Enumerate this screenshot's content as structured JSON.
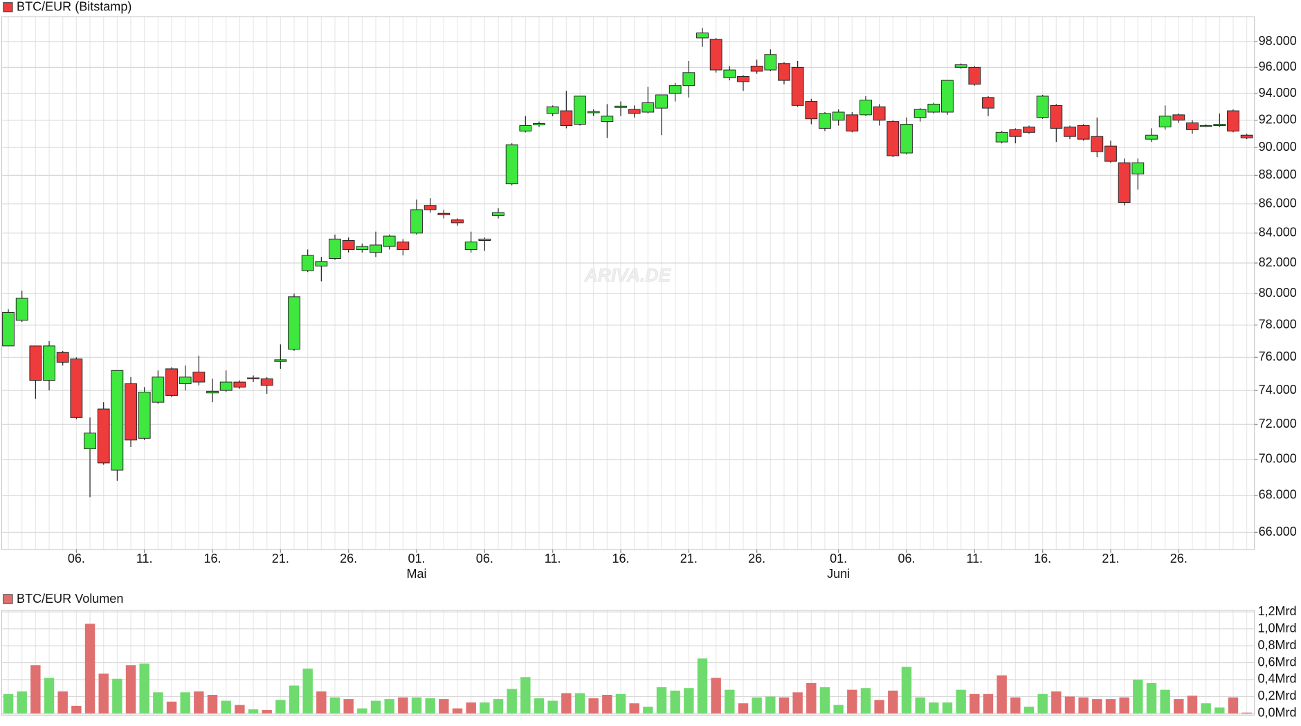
{
  "chart_data": [
    {
      "type": "candlestick",
      "title": "BTC/EUR (Bitstamp)",
      "watermark": "ARIVA.DE",
      "log": true,
      "grid": true,
      "up_color": "#3ee83e",
      "down_color": "#ee3b3b",
      "x": [
        "04-01",
        "04-02",
        "04-03",
        "04-04",
        "04-05",
        "04-06",
        "04-07",
        "04-08",
        "04-09",
        "04-10",
        "04-11",
        "04-12",
        "04-13",
        "04-14",
        "04-15",
        "04-16",
        "04-17",
        "04-18",
        "04-19",
        "04-20",
        "04-21",
        "04-22",
        "04-23",
        "04-24",
        "04-25",
        "04-26",
        "04-27",
        "04-28",
        "04-29",
        "04-30",
        "05-01",
        "05-02",
        "05-03",
        "05-04",
        "05-05",
        "05-06",
        "05-07",
        "05-08",
        "05-09",
        "05-10",
        "05-11",
        "05-12",
        "05-13",
        "05-14",
        "05-15",
        "05-16",
        "05-17",
        "05-18",
        "05-19",
        "05-20",
        "05-21",
        "05-22",
        "05-23",
        "05-24",
        "05-25",
        "05-26",
        "05-27",
        "05-28",
        "05-29",
        "05-30",
        "05-31",
        "06-01",
        "06-02",
        "06-03",
        "06-04",
        "06-05",
        "06-06",
        "06-07",
        "06-08",
        "06-09",
        "06-10",
        "06-11",
        "06-12",
        "06-13",
        "06-14",
        "06-15",
        "06-16",
        "06-17",
        "06-18",
        "06-19",
        "06-20",
        "06-21",
        "06-22",
        "06-23",
        "06-24",
        "06-25",
        "06-26",
        "06-27",
        "06-28",
        "06-29",
        "06-30",
        "07-01"
      ],
      "open": [
        76700,
        78300,
        76700,
        74600,
        76300,
        75900,
        70600,
        72900,
        69400,
        74400,
        71200,
        73300,
        75300,
        74400,
        75100,
        73850,
        74000,
        74500,
        74750,
        74700,
        75750,
        76500,
        81500,
        81800,
        82300,
        83500,
        82900,
        82700,
        83100,
        83400,
        84000,
        85900,
        85350,
        84900,
        82900,
        83500,
        85200,
        87400,
        91200,
        91650,
        92500,
        92700,
        91700,
        92550,
        91900,
        92950,
        92800,
        92600,
        92900,
        94000,
        94600,
        98300,
        98200,
        95200,
        95300,
        96100,
        95800,
        96300,
        96000,
        93400,
        91400,
        92000,
        92400,
        92400,
        93000,
        91900,
        89600,
        92200,
        92600,
        92600,
        96000,
        96000,
        93700,
        90400,
        91300,
        91500,
        92200,
        93100,
        91500,
        91600,
        90800,
        90100,
        88900,
        88100,
        90600,
        91500,
        92400,
        91800,
        91550,
        91600,
        92700,
        90900
      ],
      "high": [
        79000,
        80200,
        76700,
        77000,
        76400,
        76000,
        72400,
        73300,
        75200,
        74800,
        74200,
        75200,
        75400,
        75500,
        76100,
        74700,
        75200,
        74600,
        74900,
        74800,
        76800,
        80000,
        82900,
        82400,
        83900,
        83700,
        83300,
        84100,
        83900,
        83600,
        86300,
        86400,
        85600,
        85000,
        84100,
        83700,
        85700,
        90300,
        92300,
        91900,
        93100,
        94200,
        93800,
        92800,
        93200,
        93400,
        93100,
        94500,
        93900,
        94800,
        96500,
        99100,
        98300,
        96100,
        95400,
        96600,
        97400,
        96400,
        96500,
        93600,
        92600,
        92800,
        92600,
        93800,
        93200,
        92000,
        92200,
        92900,
        93300,
        95000,
        96300,
        96100,
        93800,
        91200,
        91400,
        91600,
        93900,
        93200,
        91600,
        91700,
        92200,
        90500,
        89200,
        89200,
        91400,
        93100,
        92500,
        92000,
        91700,
        92500,
        92800,
        91000
      ],
      "low": [
        76700,
        78200,
        73500,
        74000,
        75500,
        72300,
        67900,
        69700,
        68800,
        70700,
        71100,
        73200,
        73600,
        74000,
        74300,
        73300,
        73900,
        74100,
        74500,
        73800,
        75300,
        76400,
        81400,
        80800,
        82200,
        82700,
        82700,
        82400,
        82900,
        82500,
        83900,
        85400,
        85000,
        84500,
        82700,
        82800,
        85000,
        87300,
        91100,
        91500,
        92300,
        91400,
        91600,
        92300,
        90700,
        92300,
        92200,
        92500,
        90900,
        93400,
        93700,
        97600,
        95600,
        95000,
        94200,
        95500,
        95700,
        94700,
        93000,
        91700,
        91200,
        91600,
        91100,
        92300,
        91600,
        89300,
        89500,
        91900,
        92500,
        92400,
        95900,
        94600,
        92300,
        90300,
        90300,
        91000,
        92100,
        90400,
        90600,
        90500,
        89300,
        88900,
        85900,
        87000,
        90400,
        91300,
        91800,
        91000,
        91500,
        91500,
        91100,
        90600
      ],
      "close": [
        78800,
        79700,
        74600,
        76700,
        75700,
        72400,
        71500,
        69800,
        75200,
        71100,
        73900,
        74800,
        73700,
        74800,
        74500,
        73950,
        74500,
        74200,
        74700,
        74300,
        75850,
        79800,
        82500,
        82100,
        83600,
        82900,
        83100,
        83200,
        83800,
        82900,
        85600,
        85600,
        85250,
        84700,
        83400,
        83600,
        85400,
        90200,
        91600,
        91750,
        93000,
        91600,
        93800,
        92650,
        92300,
        93050,
        92500,
        93300,
        93900,
        94600,
        95600,
        98700,
        95800,
        95800,
        94900,
        95700,
        97000,
        95000,
        93100,
        92100,
        92500,
        92600,
        91200,
        93500,
        92000,
        89400,
        91700,
        92800,
        93200,
        95000,
        96200,
        94700,
        92900,
        91100,
        90800,
        91100,
        93800,
        91400,
        90800,
        90600,
        89700,
        89000,
        86100,
        88900,
        90900,
        92300,
        92000,
        91300,
        91600,
        91700,
        91200,
        90700
      ],
      "ylim": [
        65100,
        100000
      ],
      "yticks": [
        {
          "value": 66000,
          "label": "66.000"
        },
        {
          "value": 68000,
          "label": "68.000"
        },
        {
          "value": 70000,
          "label": "70.000"
        },
        {
          "value": 72000,
          "label": "72.000"
        },
        {
          "value": 74000,
          "label": "74.000"
        },
        {
          "value": 76000,
          "label": "76.000"
        },
        {
          "value": 78000,
          "label": "78.000"
        },
        {
          "value": 80000,
          "label": "80.000"
        },
        {
          "value": 82000,
          "label": "82.000"
        },
        {
          "value": 84000,
          "label": "84.000"
        },
        {
          "value": 86000,
          "label": "86.000"
        },
        {
          "value": 88000,
          "label": "88.000"
        },
        {
          "value": 90000,
          "label": "90.000"
        },
        {
          "value": 92000,
          "label": "92.000"
        },
        {
          "value": 94000,
          "label": "94.000"
        },
        {
          "value": 96000,
          "label": "96.000"
        },
        {
          "value": 98000,
          "label": "98.000"
        }
      ],
      "xticks": [
        {
          "value": "04-06",
          "label": "06."
        },
        {
          "value": "04-11",
          "label": "11."
        },
        {
          "value": "04-16",
          "label": "16."
        },
        {
          "value": "04-21",
          "label": "21."
        },
        {
          "value": "04-26",
          "label": "26."
        },
        {
          "value": "05-01",
          "label": "01."
        },
        {
          "value": "05-06",
          "label": "06."
        },
        {
          "value": "05-11",
          "label": "11."
        },
        {
          "value": "05-16",
          "label": "16."
        },
        {
          "value": "05-21",
          "label": "21."
        },
        {
          "value": "05-26",
          "label": "26."
        },
        {
          "value": "06-01",
          "label": "01."
        },
        {
          "value": "06-06",
          "label": "06."
        },
        {
          "value": "06-11",
          "label": "11."
        },
        {
          "value": "06-16",
          "label": "16."
        },
        {
          "value": "06-21",
          "label": "21."
        },
        {
          "value": "06-26",
          "label": "26."
        }
      ],
      "month_labels": [
        {
          "value": "05-01",
          "label": "Mai"
        },
        {
          "value": "06-01",
          "label": "Juni"
        }
      ]
    },
    {
      "type": "bar",
      "title": "BTC/EUR Volumen",
      "up_color": "#6fdb6f",
      "down_color": "#e07070",
      "grid": true,
      "values": [
        0.23,
        0.26,
        0.57,
        0.42,
        0.26,
        0.09,
        1.06,
        0.47,
        0.41,
        0.57,
        0.59,
        0.25,
        0.14,
        0.25,
        0.26,
        0.22,
        0.15,
        0.1,
        0.05,
        0.04,
        0.16,
        0.33,
        0.53,
        0.26,
        0.19,
        0.17,
        0.06,
        0.15,
        0.17,
        0.19,
        0.19,
        0.18,
        0.17,
        0.06,
        0.13,
        0.13,
        0.17,
        0.29,
        0.43,
        0.18,
        0.15,
        0.24,
        0.24,
        0.18,
        0.22,
        0.23,
        0.12,
        0.08,
        0.31,
        0.27,
        0.3,
        0.65,
        0.42,
        0.28,
        0.12,
        0.19,
        0.2,
        0.19,
        0.25,
        0.36,
        0.31,
        0.1,
        0.28,
        0.3,
        0.16,
        0.27,
        0.55,
        0.19,
        0.13,
        0.13,
        0.28,
        0.23,
        0.23,
        0.45,
        0.19,
        0.08,
        0.23,
        0.26,
        0.2,
        0.19,
        0.17,
        0.17,
        0.19,
        0.4,
        0.36,
        0.28,
        0.17,
        0.21,
        0.12,
        0.07,
        0.19,
        0.01
      ],
      "ylim": [
        0,
        1.2
      ],
      "yticks": [
        {
          "value": 0,
          "label": "0,0Mrd"
        },
        {
          "value": 0.2,
          "label": "0,2Mrd"
        },
        {
          "value": 0.4,
          "label": "0,4Mrd"
        },
        {
          "value": 0.6,
          "label": "0,6Mrd"
        },
        {
          "value": 0.8,
          "label": "0,8Mrd"
        },
        {
          "value": 1.0,
          "label": "1,0Mrd"
        },
        {
          "value": 1.2,
          "label": "1,2Mrd"
        }
      ]
    }
  ]
}
